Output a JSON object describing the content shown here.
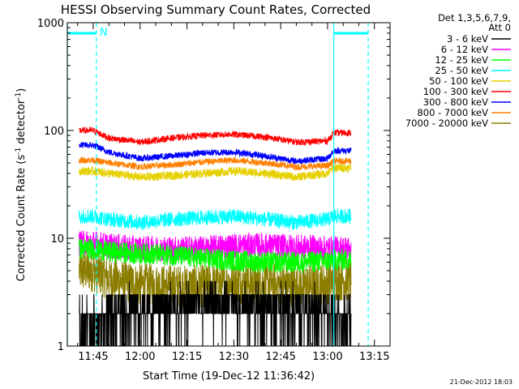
{
  "chart_data": {
    "type": "line",
    "title": "HESSI Observing Summary Count Rates, Corrected",
    "xlabel": "Start Time (19-Dec-12 11:36:42)",
    "ylabel": {
      "main": "Corrected Count Rate (s",
      "sup1": "-1",
      "mid": " detector",
      "sup2": "-1",
      "end": ")"
    },
    "x_scale": "time",
    "y_scale": "log",
    "xlim": [
      "11:36:42",
      "13:20:00"
    ],
    "ylim": [
      1,
      1000
    ],
    "x_ticks": [
      "11:45",
      "12:00",
      "12:15",
      "12:30",
      "12:45",
      "13:00",
      "13:15"
    ],
    "y_ticks": [
      {
        "value": 1,
        "label": "1"
      },
      {
        "value": 10,
        "label": "10"
      },
      {
        "value": 100,
        "label": "100"
      },
      {
        "value": 1000,
        "label": "1000"
      }
    ],
    "legend_header": [
      "Det 1,3,5,6,7,9,",
      "Att 0"
    ],
    "legend_position": "right",
    "series": [
      {
        "name": "3 - 6 keV",
        "color": "#000000",
        "x": [
          "11:45",
          "11:50",
          "12:00",
          "12:10",
          "12:20",
          "12:30",
          "12:40",
          "12:50",
          "13:00",
          "13:02"
        ],
        "y": [
          1.6,
          2.0,
          2.2,
          2.2,
          2.4,
          2.4,
          2.3,
          2.2,
          2.1,
          2.0
        ]
      },
      {
        "name": "6 - 12 keV",
        "color": "#ff00ff",
        "x": [
          "11:45",
          "11:50",
          "12:00",
          "12:10",
          "12:20",
          "12:30",
          "12:40",
          "12:50",
          "13:00",
          "13:02"
        ],
        "y": [
          9.0,
          8.5,
          8.0,
          8.0,
          8.0,
          8.5,
          8.5,
          8.3,
          8.0,
          8.0
        ]
      },
      {
        "name": "12 - 25 keV",
        "color": "#00ff00",
        "x": [
          "11:45",
          "11:50",
          "12:00",
          "12:10",
          "12:20",
          "12:30",
          "12:40",
          "12:50",
          "13:00",
          "13:02"
        ],
        "y": [
          8.0,
          7.5,
          7.2,
          7.0,
          6.5,
          6.2,
          6.0,
          6.0,
          6.2,
          6.3
        ]
      },
      {
        "name": "25 - 50 keV",
        "color": "#00ffff",
        "x": [
          "11:45",
          "11:50",
          "12:00",
          "12:10",
          "12:20",
          "12:30",
          "12:40",
          "12:50",
          "13:00",
          "13:02"
        ],
        "y": [
          16,
          15,
          14,
          15,
          15.5,
          16,
          15,
          14,
          15,
          16
        ]
      },
      {
        "name": "50 - 100 keV",
        "color": "#e6d000",
        "x": [
          "11:45",
          "11:50",
          "12:00",
          "12:10",
          "12:20",
          "12:30",
          "12:40",
          "12:50",
          "13:00",
          "13:02"
        ],
        "y": [
          42,
          40,
          37,
          38,
          40,
          42,
          40,
          37,
          40,
          45
        ]
      },
      {
        "name": "100 - 300 keV",
        "color": "#ff0000",
        "x": [
          "11:45",
          "11:50",
          "12:00",
          "12:10",
          "12:20",
          "12:30",
          "12:40",
          "12:50",
          "13:00",
          "13:02"
        ],
        "y": [
          100,
          85,
          78,
          85,
          90,
          92,
          87,
          78,
          80,
          95
        ]
      },
      {
        "name": "300 - 800 keV",
        "color": "#0000ff",
        "x": [
          "11:45",
          "11:50",
          "12:00",
          "12:10",
          "12:20",
          "12:30",
          "12:40",
          "12:50",
          "13:00",
          "13:02"
        ],
        "y": [
          73,
          63,
          55,
          58,
          62,
          63,
          58,
          52,
          55,
          65
        ]
      },
      {
        "name": "800 - 7000 keV",
        "color": "#ff7f00",
        "x": [
          "11:45",
          "11:50",
          "12:00",
          "12:10",
          "12:20",
          "12:30",
          "12:40",
          "12:50",
          "13:00",
          "13:02"
        ],
        "y": [
          53,
          50,
          46,
          48,
          51,
          53,
          50,
          46,
          47,
          52
        ]
      },
      {
        "name": "7000 - 20000 keV",
        "color": "#8b7d00",
        "x": [
          "11:45",
          "11:50",
          "12:00",
          "12:10",
          "12:20",
          "12:30",
          "12:40",
          "12:50",
          "13:00",
          "13:02"
        ],
        "y": [
          5.0,
          4.2,
          3.7,
          3.6,
          3.6,
          3.9,
          3.8,
          3.6,
          3.8,
          4.1
        ]
      }
    ],
    "night_markers": {
      "color": "#00ffff",
      "night_times": [
        "11:36:42",
        "13:02:00"
      ],
      "day_times": [
        "11:46:00",
        "13:13:00"
      ],
      "label": "N"
    },
    "data_span": [
      "11:40:30",
      "13:07:30"
    ],
    "grid": false,
    "timestamp": "21-Dec-2012 18:03"
  }
}
